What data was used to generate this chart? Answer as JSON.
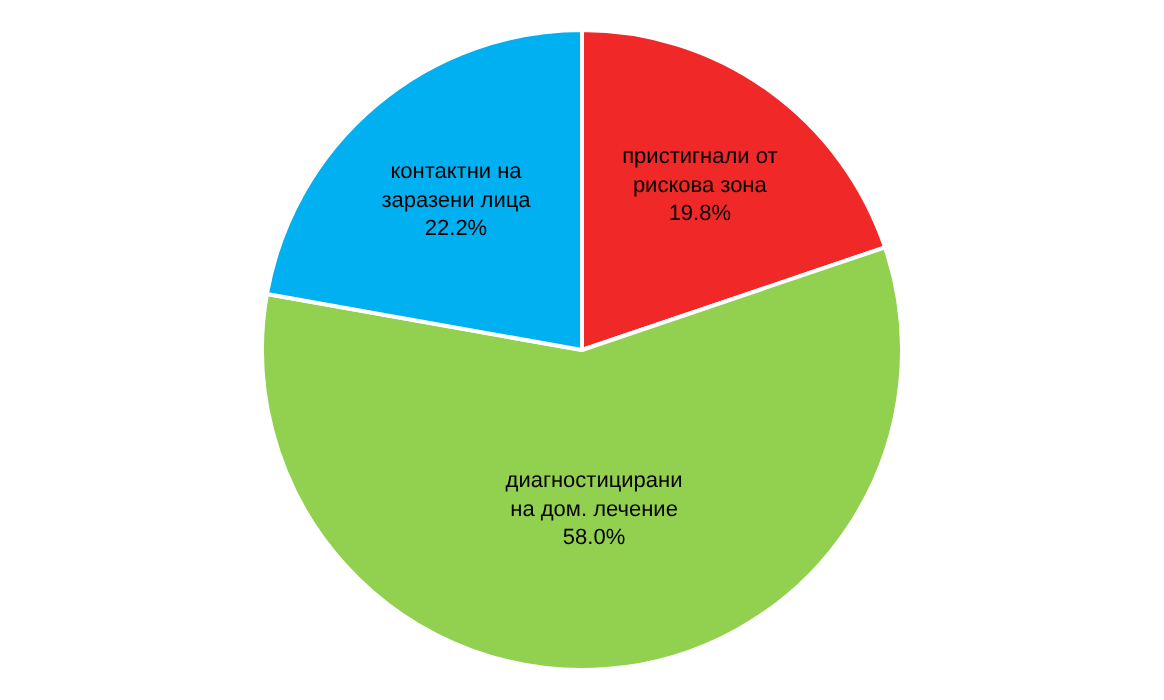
{
  "chart_data": {
    "type": "pie",
    "categories": [
      "пристигнали от\nрискова зона",
      "диагностицирани\nна дом. лечение",
      "контактни на\nзаразени лица"
    ],
    "values": [
      19.8,
      58.0,
      22.2
    ],
    "colors": [
      "#f02828",
      "#92d050",
      "#00b0f0"
    ],
    "value_labels": [
      "19.8%",
      "58.0%",
      "22.2%"
    ],
    "legend": false
  }
}
